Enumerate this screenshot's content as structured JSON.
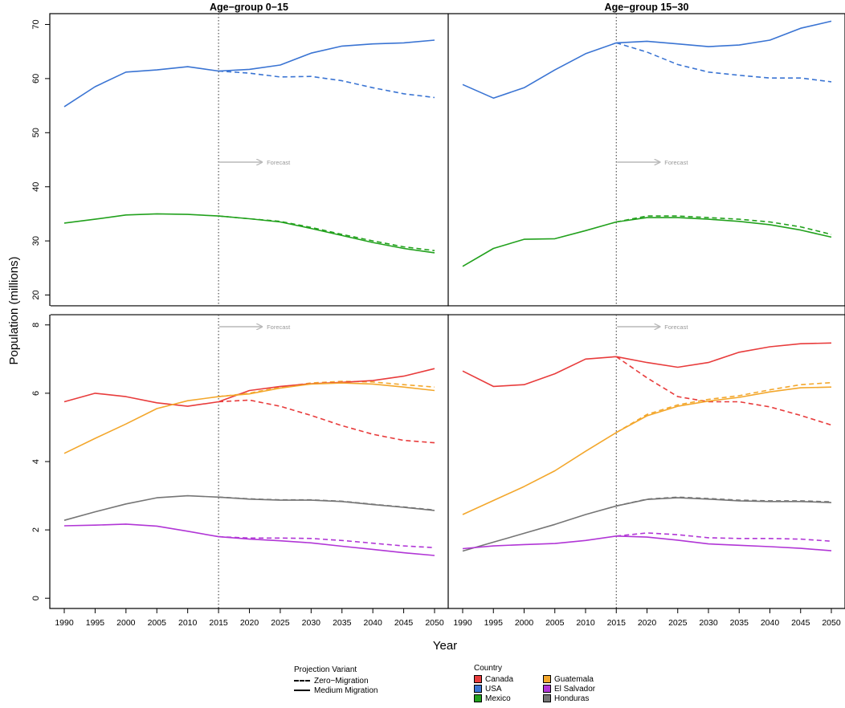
{
  "chart_data": {
    "type": "line",
    "ylabel": "Population (millions)",
    "xlabel": "Year",
    "x": [
      1990,
      1995,
      2000,
      2005,
      2010,
      2015,
      2020,
      2025,
      2030,
      2035,
      2040,
      2045,
      2050
    ],
    "forecast_start": 2015,
    "forecast_label": "Forecast",
    "column_titles": [
      "Age−group 0−15",
      "Age−group 15−30"
    ],
    "panels": [
      {
        "row": 0,
        "col": 0,
        "ylim": [
          18,
          72
        ],
        "yticks": [
          20,
          30,
          40,
          50,
          60,
          70
        ],
        "series": [
          {
            "country": "USA",
            "variant": "Medium Migration",
            "values": [
              54.8,
              58.5,
              61.2,
              61.6,
              62.2,
              61.4,
              61.7,
              62.5,
              64.7,
              66.0,
              66.4,
              66.6,
              67.1
            ]
          },
          {
            "country": "USA",
            "variant": "Zero−Migration",
            "values": [
              null,
              null,
              null,
              null,
              null,
              61.4,
              61.0,
              60.3,
              60.4,
              59.6,
              58.3,
              57.2,
              56.5
            ]
          },
          {
            "country": "Mexico",
            "variant": "Medium Migration",
            "values": [
              33.3,
              34.0,
              34.8,
              35.0,
              34.9,
              34.6,
              34.1,
              33.5,
              32.3,
              31.0,
              29.7,
              28.6,
              27.8
            ]
          },
          {
            "country": "Mexico",
            "variant": "Zero−Migration",
            "values": [
              null,
              null,
              null,
              null,
              null,
              34.6,
              34.1,
              33.6,
              32.5,
              31.2,
              30.0,
              28.9,
              28.2
            ]
          }
        ]
      },
      {
        "row": 0,
        "col": 1,
        "ylim": [
          18,
          72
        ],
        "yticks": [
          20,
          30,
          40,
          50,
          60,
          70
        ],
        "series": [
          {
            "country": "USA",
            "variant": "Medium Migration",
            "values": [
              58.9,
              56.4,
              58.3,
              61.6,
              64.6,
              66.6,
              66.9,
              66.4,
              65.9,
              66.2,
              67.1,
              69.3,
              70.6
            ]
          },
          {
            "country": "USA",
            "variant": "Zero−Migration",
            "values": [
              null,
              null,
              null,
              null,
              null,
              66.6,
              64.9,
              62.6,
              61.2,
              60.6,
              60.1,
              60.1,
              59.4
            ]
          },
          {
            "country": "Mexico",
            "variant": "Medium Migration",
            "values": [
              25.3,
              28.6,
              30.3,
              30.4,
              31.9,
              33.5,
              34.3,
              34.3,
              34.0,
              33.6,
              33.0,
              32.0,
              30.7
            ]
          },
          {
            "country": "Mexico",
            "variant": "Zero−Migration",
            "values": [
              null,
              null,
              null,
              null,
              null,
              33.5,
              34.6,
              34.6,
              34.3,
              34.0,
              33.5,
              32.6,
              31.2
            ]
          }
        ]
      },
      {
        "row": 1,
        "col": 0,
        "ylim": [
          -0.3,
          8.3
        ],
        "yticks": [
          0,
          2,
          4,
          6,
          8
        ],
        "series": [
          {
            "country": "Canada",
            "variant": "Medium Migration",
            "values": [
              5.75,
              6.0,
              5.9,
              5.72,
              5.62,
              5.75,
              6.08,
              6.2,
              6.28,
              6.32,
              6.37,
              6.5,
              6.72
            ]
          },
          {
            "country": "Canada",
            "variant": "Zero−Migration",
            "values": [
              null,
              null,
              null,
              null,
              null,
              5.75,
              5.8,
              5.62,
              5.35,
              5.05,
              4.8,
              4.62,
              4.55
            ]
          },
          {
            "country": "Guatemala",
            "variant": "Medium Migration",
            "values": [
              4.24,
              4.68,
              5.1,
              5.55,
              5.78,
              5.9,
              5.98,
              6.15,
              6.27,
              6.3,
              6.27,
              6.18,
              6.08
            ]
          },
          {
            "country": "Guatemala",
            "variant": "Zero−Migration",
            "values": [
              null,
              null,
              null,
              null,
              null,
              5.9,
              6.0,
              6.18,
              6.3,
              6.35,
              6.33,
              6.25,
              6.18
            ]
          },
          {
            "country": "Honduras",
            "variant": "Medium Migration",
            "values": [
              2.28,
              2.53,
              2.76,
              2.94,
              3.0,
              2.96,
              2.9,
              2.87,
              2.87,
              2.83,
              2.74,
              2.66,
              2.57
            ]
          },
          {
            "country": "Honduras",
            "variant": "Zero−Migration",
            "values": [
              null,
              null,
              null,
              null,
              null,
              2.96,
              2.91,
              2.88,
              2.88,
              2.84,
              2.75,
              2.67,
              2.58
            ]
          },
          {
            "country": "El Salvador",
            "variant": "Medium Migration",
            "values": [
              2.12,
              2.14,
              2.17,
              2.11,
              1.96,
              1.8,
              1.73,
              1.68,
              1.62,
              1.52,
              1.43,
              1.33,
              1.25
            ]
          },
          {
            "country": "El Salvador",
            "variant": "Zero−Migration",
            "values": [
              null,
              null,
              null,
              null,
              null,
              1.8,
              1.76,
              1.76,
              1.75,
              1.69,
              1.61,
              1.53,
              1.48
            ]
          }
        ]
      },
      {
        "row": 1,
        "col": 1,
        "ylim": [
          -0.3,
          8.3
        ],
        "yticks": [
          0,
          2,
          4,
          6,
          8
        ],
        "series": [
          {
            "country": "Canada",
            "variant": "Medium Migration",
            "values": [
              6.65,
              6.2,
              6.25,
              6.57,
              7.0,
              7.07,
              6.9,
              6.76,
              6.9,
              7.2,
              7.36,
              7.45,
              7.47
            ]
          },
          {
            "country": "Canada",
            "variant": "Zero−Migration",
            "values": [
              null,
              null,
              null,
              null,
              null,
              7.07,
              6.45,
              5.9,
              5.75,
              5.75,
              5.6,
              5.35,
              5.07
            ]
          },
          {
            "country": "Guatemala",
            "variant": "Medium Migration",
            "values": [
              2.45,
              2.86,
              3.27,
              3.73,
              4.3,
              4.85,
              5.34,
              5.62,
              5.77,
              5.88,
              6.04,
              6.16,
              6.18
            ]
          },
          {
            "country": "Guatemala",
            "variant": "Zero−Migration",
            "values": [
              null,
              null,
              null,
              null,
              null,
              4.85,
              5.38,
              5.66,
              5.82,
              5.93,
              6.1,
              6.25,
              6.31
            ]
          },
          {
            "country": "Honduras",
            "variant": "Medium Migration",
            "values": [
              1.38,
              1.64,
              1.9,
              2.16,
              2.45,
              2.7,
              2.89,
              2.94,
              2.9,
              2.85,
              2.83,
              2.83,
              2.8
            ]
          },
          {
            "country": "Honduras",
            "variant": "Zero−Migration",
            "values": [
              null,
              null,
              null,
              null,
              null,
              2.7,
              2.9,
              2.96,
              2.92,
              2.87,
              2.85,
              2.85,
              2.82
            ]
          },
          {
            "country": "El Salvador",
            "variant": "Medium Migration",
            "values": [
              1.45,
              1.53,
              1.57,
              1.6,
              1.69,
              1.82,
              1.79,
              1.7,
              1.59,
              1.55,
              1.51,
              1.46,
              1.39
            ]
          },
          {
            "country": "El Salvador",
            "variant": "Zero−Migration",
            "values": [
              null,
              null,
              null,
              null,
              null,
              1.82,
              1.91,
              1.86,
              1.77,
              1.75,
              1.75,
              1.73,
              1.67
            ]
          }
        ]
      }
    ],
    "colors": {
      "Canada": "#e83c3c",
      "USA": "#3a74d3",
      "Mexico": "#22a11d",
      "Guatemala": "#f3a72c",
      "El Salvador": "#b136d6",
      "Honduras": "#757575"
    }
  },
  "legend": {
    "variant_title": "Projection Variant",
    "variants": [
      "Zero−Migration",
      "Medium Migration"
    ],
    "country_title": "Country",
    "countries": [
      "Canada",
      "Guatemala",
      "USA",
      "El Salvador",
      "Mexico",
      "Honduras"
    ]
  }
}
